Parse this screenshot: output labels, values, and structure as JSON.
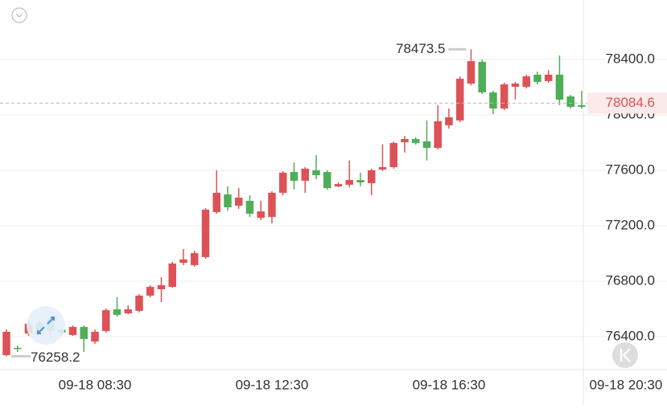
{
  "chart_data": {
    "type": "candlestick",
    "open": [
      76267,
      76319,
      76423,
      76499,
      76528,
      76452,
      76412,
      76470,
      76365,
      76441,
      76597,
      76568,
      76586,
      76696,
      76742,
      76759,
      76933,
      76916,
      76974,
      77299,
      77426,
      77345,
      77380,
      77258,
      77264,
      77438,
      77588,
      77525,
      77600,
      77588,
      77484,
      77496,
      77530,
      77507,
      77606,
      77623,
      77803,
      77826,
      77809,
      77762,
      77925,
      77960,
      78226,
      78383,
      78162,
      78046,
      78203,
      78203,
      78290,
      78244,
      78290,
      78133,
      78070
    ],
    "high": [
      76452,
      76336,
      76510,
      76522,
      76545,
      76470,
      76481,
      76481,
      76452,
      76603,
      76684,
      76626,
      76707,
      76771,
      76829,
      76939,
      77032,
      77020,
      77328,
      77600,
      77484,
      77472,
      77420,
      77380,
      77449,
      77594,
      77658,
      77623,
      77710,
      77600,
      77513,
      77670,
      77583,
      77612,
      77786,
      77809,
      77849,
      77838,
      77960,
      78070,
      78046,
      78278,
      78473.5,
      78400,
      78174,
      78232,
      78238,
      78290,
      78312,
      78323,
      78429,
      78145,
      78174
    ],
    "low": [
      76258.2,
      76290,
      76406,
      76423,
      76394,
      76412,
      76406,
      76290,
      76348,
      76429,
      76545,
      76562,
      76574,
      76684,
      76649,
      76753,
      76916,
      76904,
      76962,
      77287,
      77310,
      77322,
      77264,
      77241,
      77217,
      77420,
      77461,
      77438,
      77536,
      77461,
      77478,
      77478,
      77484,
      77420,
      77594,
      77612,
      77728,
      77786,
      77670,
      77751,
      77901,
      77948,
      78214,
      78150,
      78006,
      78035,
      78110,
      78191,
      78220,
      78232,
      78070,
      78046,
      78046
    ],
    "close": [
      76435,
      76310,
      76493,
      76441,
      76441,
      76429,
      76470,
      76383,
      76435,
      76591,
      76557,
      76597,
      76696,
      76759,
      76771,
      76928,
      76957,
      77003,
      77316,
      77438,
      77333,
      77403,
      77287,
      77304,
      77438,
      77583,
      77525,
      77612,
      77565,
      77472,
      77501,
      77530,
      77513,
      77600,
      77623,
      77797,
      77826,
      77797,
      77762,
      77954,
      77983,
      78261,
      78388,
      78162,
      78046,
      78220,
      78226,
      78278,
      78238,
      78290,
      78110,
      78058,
      78058
    ],
    "up_color": "#dd5257",
    "down_color": "#4fae57",
    "ylim": [
      76162,
      78829
    ],
    "yticks": [
      {
        "value": 76400,
        "label": "76400.0"
      },
      {
        "value": 76800,
        "label": "76800.0"
      },
      {
        "value": 77200,
        "label": "77200.0"
      },
      {
        "value": 77600,
        "label": "77600.0"
      },
      {
        "value": 78000,
        "label": "78000.0"
      },
      {
        "value": 78400,
        "label": "78400.0"
      }
    ],
    "xlim": [
      -0.582,
      52.15
    ],
    "xticks": [
      {
        "value": 8,
        "label": "09-18 08:30"
      },
      {
        "value": 24,
        "label": "09-18 12:30"
      },
      {
        "value": 40,
        "label": "09-18 16:30"
      },
      {
        "value": 56,
        "label": "09-18 20:30"
      }
    ],
    "last_price": 78084.6,
    "grid": true
  }
}
